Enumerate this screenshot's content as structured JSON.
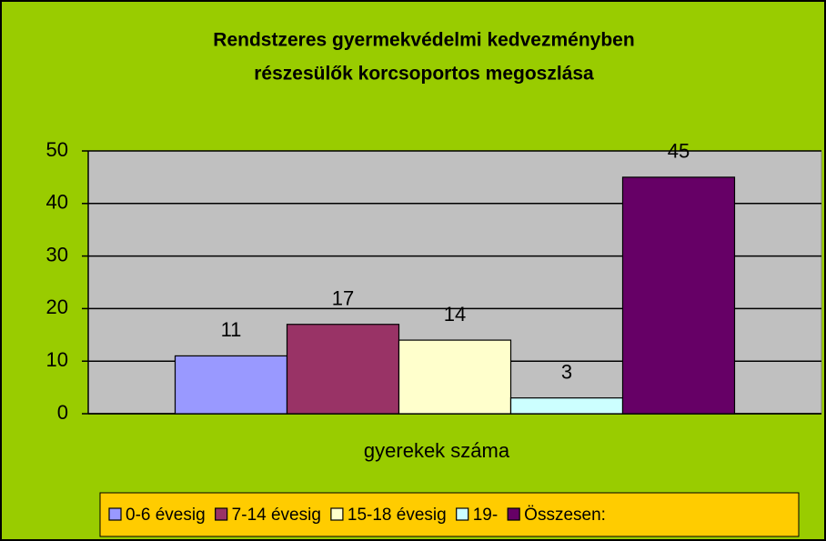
{
  "chart_data": {
    "type": "bar",
    "title": [
      "Rendstzeres gyermekvédelmi kedvezményben",
      "részesülők korcsoportos megoszlása"
    ],
    "categories": [
      "gyerekek száma"
    ],
    "series": [
      {
        "name": "0-6 évesig",
        "color": "#9999ff",
        "values": [
          11
        ]
      },
      {
        "name": "7-14 évesig",
        "color": "#993366",
        "values": [
          17
        ]
      },
      {
        "name": "15-18 évesig",
        "color": "#ffffcc",
        "values": [
          14
        ]
      },
      {
        "name": "19-",
        "color": "#ccffff",
        "values": [
          3
        ]
      },
      {
        "name": "Összesen:",
        "color": "#660066",
        "values": [
          45
        ]
      }
    ],
    "ylim": [
      0,
      50
    ],
    "yticks": [
      0,
      10,
      20,
      30,
      40,
      50
    ],
    "grid": true,
    "legend": "bottom"
  }
}
